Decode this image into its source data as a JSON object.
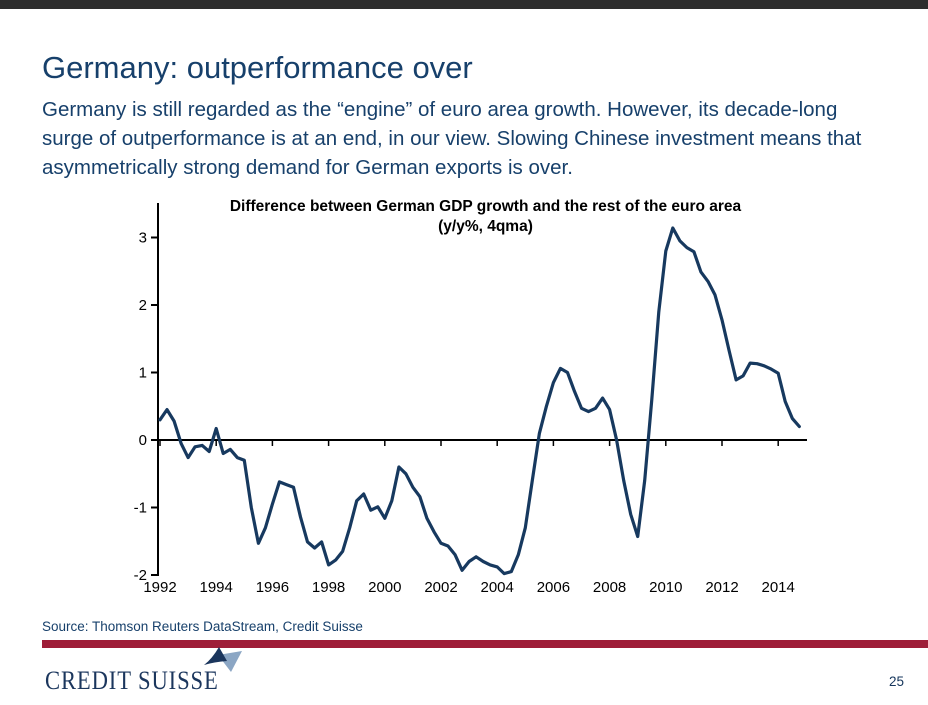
{
  "slide": {
    "title": "Germany: outperformance over",
    "lede_lines": [
      "Germany is still regarded as the “engine” of euro area growth. However, its decade-long",
      "surge of outperformance is at an end, in our view. Slowing Chinese investment means that",
      "asymmetrically strong demand for German exports is over."
    ],
    "source": "Source: Thomson Reuters DataStream, Credit Suisse",
    "brand": "CREDIT SUISSE",
    "page_number": "25",
    "colors": {
      "topbar": "#2e2e2e",
      "text_blue": "#17406b",
      "line_blue": "#17395f",
      "accent_red": "#9e1d38",
      "sail_dark": "#1b365d",
      "sail_light": "#8ba6c4",
      "axis_black": "#000000"
    }
  },
  "chart_data": {
    "type": "line",
    "title_line1": "Difference between German GDP growth and the rest of the euro area",
    "title_line2": "(y/y%, 4qma)",
    "xlabel": "",
    "ylabel": "",
    "x_start_year": 1992,
    "x_step_years": 0.25,
    "x_tick_years": [
      1992,
      1994,
      1996,
      1998,
      2000,
      2002,
      2004,
      2006,
      2008,
      2010,
      2012,
      2014
    ],
    "y_ticks": [
      3,
      2,
      1,
      0,
      -1,
      -2
    ],
    "ylim": [
      -2.05,
      3.5
    ],
    "grid": false,
    "legend": false,
    "series_name": "German GDP growth minus rest of euro area, y/y%, 4qma",
    "values": [
      0.3,
      0.45,
      0.28,
      -0.05,
      -0.26,
      -0.1,
      -0.08,
      -0.17,
      0.17,
      -0.2,
      -0.14,
      -0.26,
      -0.3,
      -1.0,
      -1.53,
      -1.3,
      -0.95,
      -0.62,
      -0.66,
      -0.7,
      -1.14,
      -1.51,
      -1.6,
      -1.51,
      -1.85,
      -1.78,
      -1.65,
      -1.3,
      -0.9,
      -0.8,
      -1.04,
      -0.99,
      -1.16,
      -0.9,
      -0.4,
      -0.5,
      -0.7,
      -0.84,
      -1.16,
      -1.36,
      -1.53,
      -1.57,
      -1.7,
      -1.93,
      -1.8,
      -1.73,
      -1.8,
      -1.85,
      -1.88,
      -1.98,
      -1.95,
      -1.7,
      -1.3,
      -0.6,
      0.1,
      0.5,
      0.85,
      1.06,
      1.0,
      0.72,
      0.47,
      0.42,
      0.47,
      0.62,
      0.45,
      0.0,
      -0.6,
      -1.1,
      -1.43,
      -0.6,
      0.6,
      1.9,
      2.8,
      3.14,
      2.95,
      2.85,
      2.79,
      2.49,
      2.35,
      2.15,
      1.78,
      1.33,
      0.89,
      0.95,
      1.14,
      1.13,
      1.1,
      1.05,
      0.99,
      0.57,
      0.32,
      0.2
    ]
  }
}
